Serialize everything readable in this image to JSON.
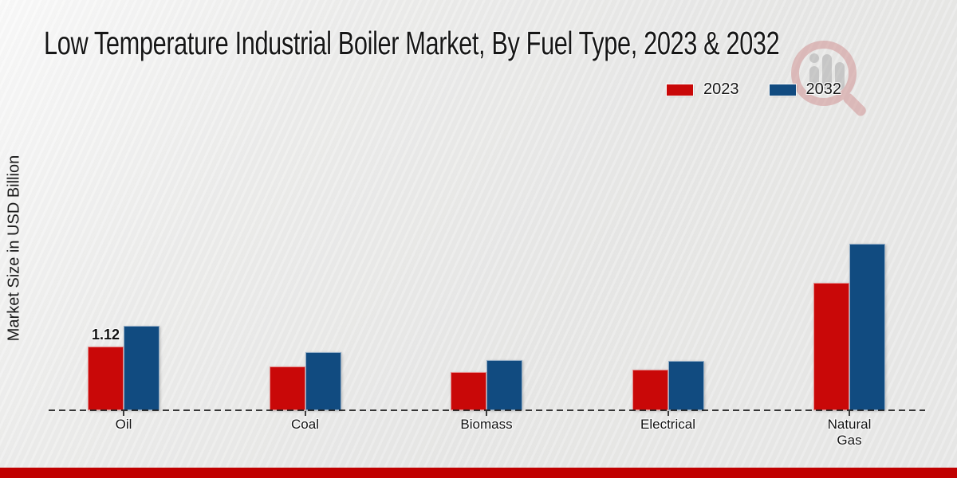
{
  "page": {
    "background_color": "#e9e9e8",
    "footer_bar_color": "#c00000"
  },
  "chart_data": {
    "type": "bar",
    "title": "Low Temperature Industrial Boiler Market, By Fuel Type, 2023 & 2032",
    "ylabel": "Market Size in USD Billion",
    "xlabel": "",
    "categories": [
      "Oil",
      "Coal",
      "Biomass",
      "Electrical",
      "Natural Gas"
    ],
    "tick_labels": [
      "Oil",
      "Coal",
      "Biomass",
      "Electrical",
      "Natural\nGas"
    ],
    "series": [
      {
        "name": "2023",
        "color": "#c90808",
        "values": [
          1.12,
          0.77,
          0.67,
          0.71,
          2.24
        ]
      },
      {
        "name": "2032",
        "color": "#114b80",
        "values": [
          1.48,
          1.02,
          0.88,
          0.87,
          2.93
        ]
      }
    ],
    "bar_labels": [
      {
        "category": "Oil",
        "series": "2023",
        "text": "1.12"
      }
    ],
    "ylim": [
      0,
      3.6
    ],
    "grid": false,
    "legend_position": "top-right",
    "axis_style": "dashed-baseline",
    "watermark_icon": "magnifier-bar-chart-logo"
  }
}
